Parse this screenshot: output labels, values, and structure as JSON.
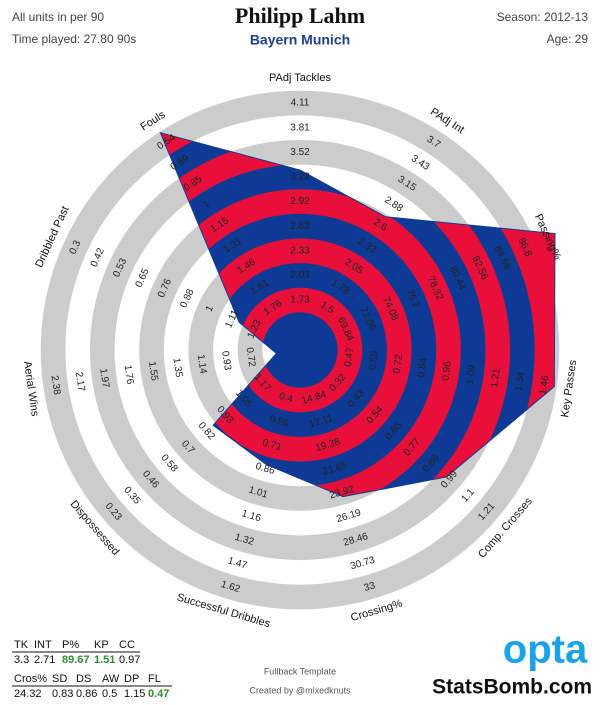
{
  "header": {
    "units": "All units in per 90",
    "time_played": "Time played: 27.80 90s",
    "season": "Season: 2012-13",
    "age": "Age: 29"
  },
  "chart_data": {
    "type": "radar",
    "title": "Philipp Lahm",
    "subtitle": "Bayern Munich",
    "colors": {
      "band_a": "#e8103a",
      "band_b": "#0d3a94",
      "ring": "#cccccc"
    },
    "axes": [
      {
        "name": "PAdj Tackles",
        "ticks": [
          1.73,
          2.03,
          2.33,
          2.63,
          2.92,
          3.22,
          3.52,
          3.81,
          4.11
        ],
        "value": 3.3
      },
      {
        "name": "PAdj Int",
        "ticks": [
          1.5,
          1.78,
          2.05,
          2.33,
          2.6,
          2.88,
          3.15,
          3.43,
          3.7
        ],
        "value": 2.71
      },
      {
        "name": "Passing%",
        "ticks": [
          69.84,
          71.96,
          74.08,
          76.2,
          78.32,
          80.44,
          82.56,
          84.68,
          86.8
        ],
        "value": 89.67
      },
      {
        "name": "Key Passes",
        "ticks": [
          0.47,
          0.59,
          0.72,
          0.84,
          0.96,
          1.09,
          1.21,
          1.34,
          1.46
        ],
        "value": 1.51
      },
      {
        "name": "Comp. Crosses",
        "ticks": [
          0.32,
          0.43,
          0.54,
          0.65,
          0.77,
          0.88,
          0.99,
          1.1,
          1.21
        ],
        "value": 0.97
      },
      {
        "name": "Crossing%",
        "ticks": [
          14.84,
          17.11,
          19.38,
          21.65,
          23.92,
          26.19,
          28.46,
          30.73,
          33
        ],
        "value": 24.32
      },
      {
        "name": "Successful Dribbles",
        "ticks": [
          0.4,
          0.56,
          0.71,
          0.86,
          1.01,
          1.16,
          1.32,
          1.47,
          1.62
        ],
        "value": 0.83
      },
      {
        "name": "Dispossessed",
        "ticks": [
          1.17,
          1.05,
          0.93,
          0.82,
          0.7,
          0.58,
          0.46,
          0.35,
          0.23
        ],
        "value": 0.86
      },
      {
        "name": "Aerial Wins",
        "ticks": [
          0.72,
          0.93,
          1.14,
          1.35,
          1.55,
          1.76,
          1.97,
          2.17,
          2.38
        ],
        "value": 0.5
      },
      {
        "name": "Dribbled Past",
        "ticks": [
          1.23,
          1.11,
          1,
          0.88,
          0.76,
          0.65,
          0.53,
          0.42,
          0.3
        ],
        "value": 1.15
      },
      {
        "name": "Fouls",
        "ticks": [
          1.76,
          1.61,
          1.46,
          1.31,
          1.15,
          1,
          0.85,
          0.69,
          0.54
        ],
        "value": 0.47
      }
    ]
  },
  "stats": {
    "highlight_color": "#2e8b2e",
    "rows": [
      {
        "headers": [
          "TK",
          "INT",
          "P%",
          "KP",
          "CC"
        ],
        "axes": [
          0,
          1,
          2,
          3,
          4
        ],
        "highlight": [
          false,
          false,
          true,
          true,
          false
        ]
      },
      {
        "headers": [
          "Cros%",
          "SD",
          "DS",
          "AW",
          "DP",
          "FL"
        ],
        "axes": [
          5,
          6,
          7,
          8,
          9,
          10
        ],
        "highlight": [
          false,
          false,
          false,
          false,
          false,
          true
        ]
      }
    ]
  },
  "footer": {
    "template": "Fullback Template",
    "credit": "Created by @mixedknuts",
    "logo": "opta",
    "site": "StatsBomb.com"
  }
}
